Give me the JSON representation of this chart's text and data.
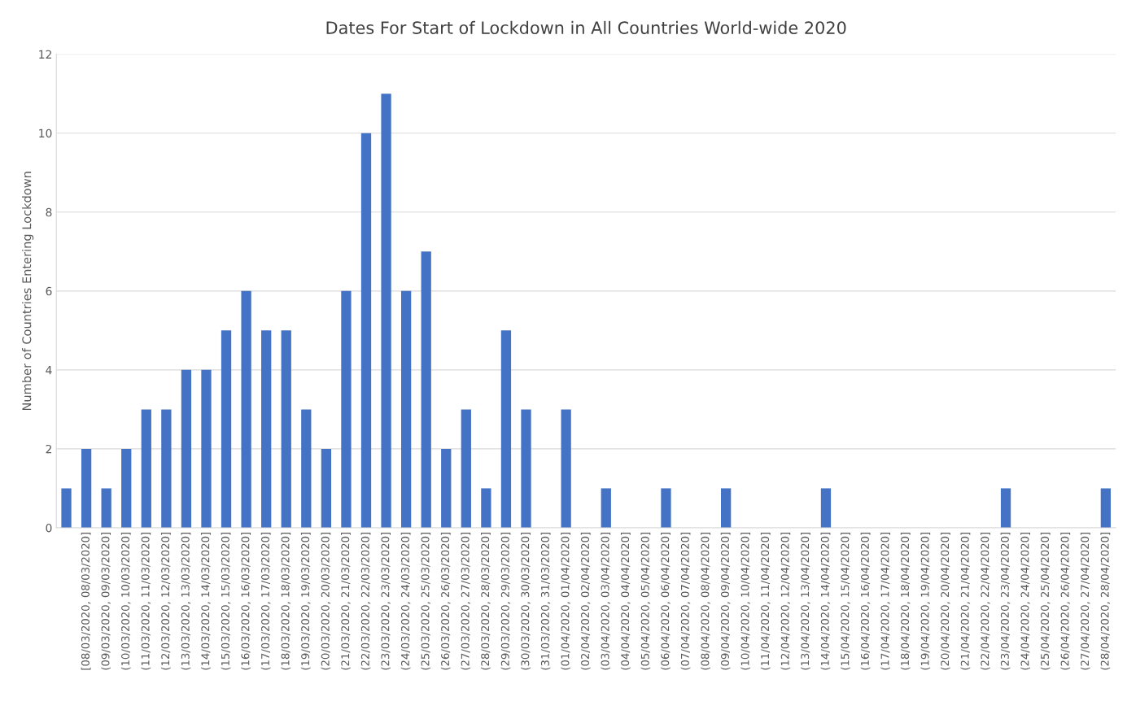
{
  "chart_data": {
    "type": "bar",
    "title": "Dates For Start of Lockdown in All Countries World-wide 2020",
    "ylabel": "Number of Countries Entering Lockdown",
    "categories": [
      null,
      "[08/03/2020, 08/03/2020]",
      "(09/03/2020, 09/03/2020]",
      "(10/03/2020, 10/03/2020]",
      "(11/03/2020, 11/03/2020]",
      "(12/03/2020, 12/03/2020]",
      "(13/03/2020, 13/03/2020]",
      "(14/03/2020, 14/03/2020]",
      "(15/03/2020, 15/03/2020]",
      "(16/03/2020, 16/03/2020]",
      "(17/03/2020, 17/03/2020]",
      "(18/03/2020, 18/03/2020]",
      "(19/03/2020, 19/03/2020]",
      "(20/03/2020, 20/03/2020]",
      "(21/03/2020, 21/03/2020]",
      "(22/03/2020, 22/03/2020]",
      "(23/03/2020, 23/03/2020]",
      "(24/03/2020, 24/03/2020]",
      "(25/03/2020, 25/03/2020]",
      "(26/03/2020, 26/03/2020]",
      "(27/03/2020, 27/03/2020]",
      "(28/03/2020, 28/03/2020]",
      "(29/03/2020, 29/03/2020]",
      "(30/03/2020, 30/03/2020]",
      "(31/03/2020, 31/03/2020]",
      "(01/04/2020, 01/04/2020]",
      "(02/04/2020, 02/04/2020]",
      "(03/04/2020, 03/04/2020]",
      "(04/04/2020, 04/04/2020]",
      "(05/04/2020, 05/04/2020]",
      "(06/04/2020, 06/04/2020]",
      "(07/04/2020, 07/04/2020]",
      "(08/04/2020, 08/04/2020]",
      "(09/04/2020, 09/04/2020]",
      "(10/04/2020, 10/04/2020]",
      "(11/04/2020, 11/04/2020]",
      "(12/04/2020, 12/04/2020]",
      "(13/04/2020, 13/04/2020]",
      "(14/04/2020, 14/04/2020]",
      "(15/04/2020, 15/04/2020]",
      "(16/04/2020, 16/04/2020]",
      "(17/04/2020, 17/04/2020]",
      "(18/04/2020, 18/04/2020]",
      "(19/04/2020, 19/04/2020]",
      "(20/04/2020, 20/04/2020]",
      "(21/04/2020, 21/04/2020]",
      "(22/04/2020, 22/04/2020]",
      "(23/04/2020, 23/04/2020]",
      "(24/04/2020, 24/04/2020]",
      "(25/04/2020, 25/04/2020]",
      "(26/04/2020, 26/04/2020]",
      "(27/04/2020, 27/04/2020]",
      "(28/04/2020, 28/04/2020]"
    ],
    "values": [
      1,
      2,
      1,
      2,
      3,
      3,
      4,
      4,
      5,
      6,
      5,
      5,
      3,
      2,
      6,
      10,
      11,
      6,
      7,
      2,
      3,
      1,
      5,
      3,
      0,
      3,
      0,
      1,
      0,
      0,
      1,
      0,
      0,
      1,
      0,
      0,
      0,
      0,
      1,
      0,
      0,
      0,
      0,
      0,
      0,
      0,
      0,
      1,
      0,
      0,
      0,
      0,
      1
    ],
    "color": "#4472c4",
    "ylim": [
      0,
      12
    ],
    "yticks": [
      0,
      2,
      4,
      6,
      8,
      10,
      12
    ],
    "grid": "y",
    "legend": false
  }
}
